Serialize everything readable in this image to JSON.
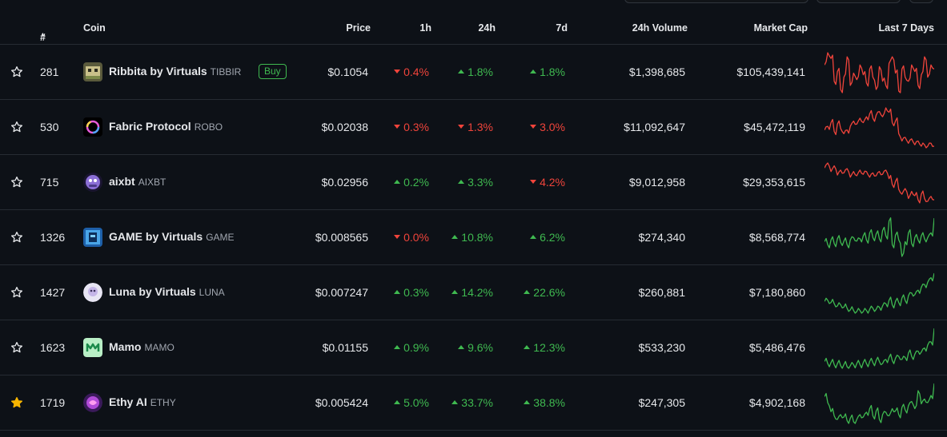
{
  "colors": {
    "up": "#3fb950",
    "down": "#f0443b",
    "star_active": "#f7b500",
    "background": "#0d1117"
  },
  "header": {
    "rank": "#",
    "sort_icon": "triangle-up-icon",
    "coin": "Coin",
    "price": "Price",
    "h1": "1h",
    "h24": "24h",
    "d7": "7d",
    "volume": "24h Volume",
    "market_cap": "Market Cap",
    "last7": "Last 7 Days"
  },
  "rows": [
    {
      "rank": "281",
      "name": "Ribbita by Virtuals",
      "symbol": "TIBBIR",
      "buy": "Buy",
      "price": "$0.1054",
      "h1": "0.4%",
      "h1_dir": "down",
      "h24": "1.8%",
      "h24_dir": "up",
      "d7": "1.8%",
      "d7_dir": "up",
      "volume": "$1,398,685",
      "market_cap": "$105,439,141",
      "starred": false,
      "trend": "down",
      "logo": "ribbita-logo",
      "spark": [
        60,
        75,
        68,
        40,
        52,
        30,
        45,
        70,
        35,
        50,
        42,
        60,
        48,
        38,
        55,
        45,
        30,
        58,
        40,
        35,
        62,
        70,
        50,
        28,
        55,
        45,
        40,
        60,
        52,
        35,
        48,
        70,
        45,
        60,
        55
      ]
    },
    {
      "rank": "530",
      "name": "Fabric Protocol",
      "symbol": "ROBO",
      "buy": "",
      "price": "$0.02038",
      "h1": "0.3%",
      "h1_dir": "down",
      "h24": "1.3%",
      "h24_dir": "down",
      "d7": "3.0%",
      "d7_dir": "down",
      "volume": "$11,092,647",
      "market_cap": "$45,472,119",
      "starred": false,
      "trend": "down",
      "logo": "fabric-logo",
      "spark": [
        50,
        55,
        60,
        48,
        58,
        52,
        45,
        50,
        55,
        62,
        58,
        66,
        60,
        68,
        72,
        66,
        70,
        75,
        68,
        80,
        74,
        60,
        62,
        45,
        35,
        40,
        32,
        38,
        30,
        35,
        28,
        30,
        28,
        32,
        28
      ]
    },
    {
      "rank": "715",
      "name": "aixbt",
      "symbol": "AIXBT",
      "buy": "",
      "price": "$0.02956",
      "h1": "0.2%",
      "h1_dir": "up",
      "h24": "3.3%",
      "h24_dir": "up",
      "d7": "4.2%",
      "d7_dir": "down",
      "volume": "$9,012,958",
      "market_cap": "$29,353,615",
      "starred": false,
      "trend": "down",
      "logo": "aixbt-logo",
      "spark": [
        75,
        82,
        70,
        78,
        65,
        72,
        68,
        74,
        62,
        70,
        64,
        72,
        66,
        70,
        62,
        68,
        64,
        70,
        66,
        72,
        60,
        52,
        56,
        45,
        38,
        46,
        32,
        42,
        36,
        30,
        38,
        32,
        28,
        35,
        30
      ]
    },
    {
      "rank": "1326",
      "name": "GAME by Virtuals",
      "symbol": "GAME",
      "buy": "",
      "price": "$0.008565",
      "h1": "0.0%",
      "h1_dir": "down",
      "h24": "10.8%",
      "h24_dir": "up",
      "d7": "6.2%",
      "d7_dir": "up",
      "volume": "$274,340",
      "market_cap": "$8,568,774",
      "starred": false,
      "trend": "up",
      "logo": "game-logo",
      "spark": [
        45,
        40,
        48,
        42,
        50,
        44,
        46,
        40,
        48,
        52,
        46,
        50,
        55,
        48,
        60,
        52,
        58,
        50,
        64,
        55,
        80,
        40,
        56,
        48,
        20,
        45,
        60,
        42,
        52,
        48,
        55,
        50,
        52,
        60,
        85
      ]
    },
    {
      "rank": "1427",
      "name": "Luna by Virtuals",
      "symbol": "LUNA",
      "buy": "",
      "price": "$0.007247",
      "h1": "0.3%",
      "h1_dir": "up",
      "h24": "14.2%",
      "h24_dir": "up",
      "d7": "22.6%",
      "d7_dir": "up",
      "volume": "$260,881",
      "market_cap": "$7,180,860",
      "starred": false,
      "trend": "up",
      "logo": "luna-logo",
      "spark": [
        30,
        32,
        28,
        26,
        22,
        24,
        20,
        18,
        15,
        14,
        12,
        14,
        12,
        14,
        16,
        18,
        16,
        20,
        22,
        26,
        32,
        24,
        30,
        28,
        36,
        32,
        40,
        45,
        42,
        50,
        55,
        60,
        64,
        72,
        80
      ]
    },
    {
      "rank": "1623",
      "name": "Mamo",
      "symbol": "MAMO",
      "buy": "",
      "price": "$0.01155",
      "h1": "0.9%",
      "h1_dir": "up",
      "h24": "9.6%",
      "h24_dir": "up",
      "d7": "12.3%",
      "d7_dir": "up",
      "volume": "$533,230",
      "market_cap": "$5,486,476",
      "starred": false,
      "trend": "up",
      "logo": "mamo-logo",
      "spark": [
        20,
        16,
        18,
        14,
        16,
        12,
        14,
        10,
        12,
        14,
        16,
        14,
        18,
        16,
        20,
        18,
        22,
        20,
        16,
        24,
        28,
        22,
        26,
        30,
        24,
        28,
        36,
        30,
        34,
        40,
        38,
        46,
        52,
        58,
        84
      ]
    },
    {
      "rank": "1719",
      "name": "Ethy AI",
      "symbol": "ETHY",
      "buy": "",
      "price": "$0.005424",
      "h1": "5.0%",
      "h1_dir": "up",
      "h24": "33.7%",
      "h24_dir": "up",
      "d7": "38.8%",
      "d7_dir": "up",
      "volume": "$247,305",
      "market_cap": "$4,902,168",
      "starred": true,
      "trend": "up",
      "logo": "ethy-logo",
      "spark": [
        60,
        50,
        35,
        28,
        22,
        30,
        26,
        20,
        24,
        18,
        22,
        30,
        26,
        34,
        40,
        28,
        36,
        22,
        30,
        34,
        28,
        40,
        36,
        30,
        42,
        38,
        45,
        52,
        40,
        70,
        48,
        56,
        50,
        62,
        82
      ]
    }
  ]
}
